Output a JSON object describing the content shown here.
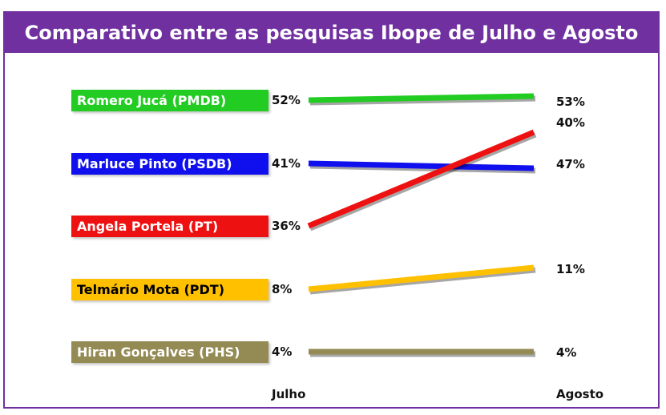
{
  "title": "Comparativo entre as pesquisas Ibope de Julho e Agosto",
  "chart_data": {
    "type": "line",
    "categories": [
      "Julho",
      "Agosto"
    ],
    "series": [
      {
        "name": "Romero Jucá (PMDB)",
        "values": [
          52,
          53
        ],
        "labels": [
          "52%",
          "53%"
        ],
        "color": "#22cc22",
        "label_color": "#ffffff"
      },
      {
        "name": "Marluce Pinto (PSDB)",
        "values": [
          41,
          40
        ],
        "labels": [
          "41%",
          "40%"
        ],
        "color": "#1010ee",
        "label_color": "#ffffff"
      },
      {
        "name": "Angela Portela (PT)",
        "values": [
          36,
          47
        ],
        "labels": [
          "36%",
          "47%"
        ],
        "color": "#ee1111",
        "label_color": "#ffffff"
      },
      {
        "name": "Telmário Mota (PDT)",
        "values": [
          8,
          11
        ],
        "labels": [
          "8%",
          "11%"
        ],
        "color": "#ffc000",
        "label_color": "#000000"
      },
      {
        "name": "Hiran Gonçalves (PHS)",
        "values": [
          4,
          4
        ],
        "labels": [
          "4%",
          "4%"
        ],
        "color": "#948a54",
        "label_color": "#ffffff"
      }
    ]
  },
  "colors": {
    "title_background": "#7030a0",
    "title_text": "#ffffff",
    "frame": "#7030a0"
  }
}
